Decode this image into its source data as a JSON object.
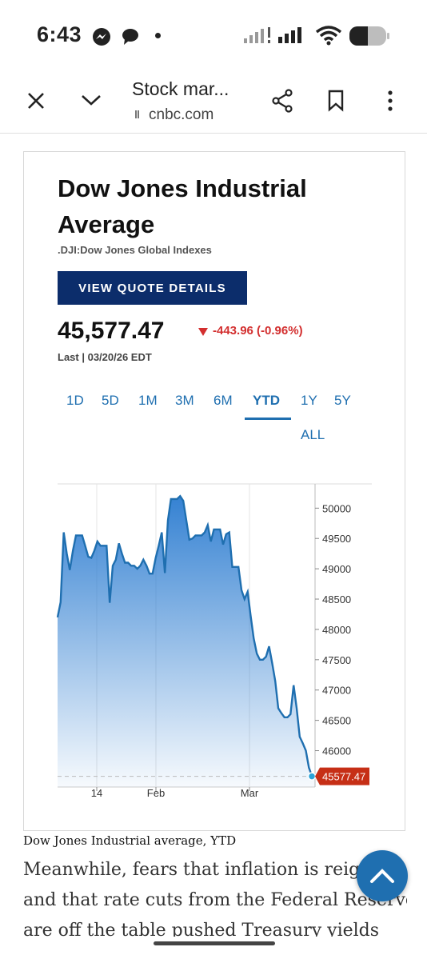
{
  "status_bar": {
    "time": "6:43"
  },
  "toolbar": {
    "title": "Stock mar...",
    "url": "cnbc.com"
  },
  "quote": {
    "title": "Dow Jones Industrial Average",
    "title_line1": "Dow Jones Industrial",
    "title_line2": "Average",
    "symbol_line": ".DJI:Dow Jones Global Indexes",
    "button_label": "VIEW QUOTE DETAILS",
    "price": "45,577.47",
    "change": "-443.96 (-0.96%)",
    "last": "Last | 03/20/26 EDT",
    "change_color": "#d32f2f",
    "button_color": "#0c2d6b"
  },
  "ranges": [
    "1D",
    "5D",
    "1M",
    "3M",
    "6M",
    "YTD",
    "1Y",
    "5Y",
    "ALL"
  ],
  "active_range": "YTD",
  "chart_data": {
    "type": "area",
    "x_ticks": [
      "14",
      "Feb",
      "Mar"
    ],
    "y_ticks": [
      50000,
      49500,
      49000,
      48500,
      48000,
      47500,
      47000,
      46500,
      46000
    ],
    "ylim": [
      45400,
      50400
    ],
    "current_label": "45577.47",
    "grid": true,
    "color": "#1f6fb0",
    "x": [
      0,
      1,
      2,
      3,
      4,
      5,
      6,
      7,
      8,
      9,
      10,
      11,
      12,
      13,
      14,
      15,
      16,
      17,
      18,
      19,
      20,
      21,
      22,
      23,
      24,
      25,
      26,
      27,
      28,
      29,
      30,
      31,
      32,
      33,
      34,
      35,
      36,
      37,
      38,
      39,
      40,
      41,
      42,
      43,
      44,
      45,
      46,
      47,
      48,
      49,
      50,
      51,
      52,
      53,
      54,
      55,
      56,
      57,
      58,
      59,
      60,
      61,
      62,
      63,
      64,
      65,
      66,
      67,
      68,
      69,
      70,
      71,
      72,
      73,
      74,
      75,
      76,
      77,
      78,
      79,
      80,
      81,
      82,
      83,
      84
    ],
    "values": [
      48200,
      48450,
      49600,
      49250,
      48980,
      49300,
      49550,
      49550,
      49550,
      49380,
      49200,
      49180,
      49300,
      49450,
      49380,
      49380,
      49380,
      48440,
      49050,
      49150,
      49420,
      49250,
      49100,
      49100,
      49050,
      49050,
      49000,
      49050,
      49150,
      49050,
      48920,
      48920,
      49180,
      49380,
      49600,
      48930,
      49800,
      50150,
      50150,
      50150,
      50200,
      50120,
      49800,
      49480,
      49500,
      49550,
      49550,
      49550,
      49600,
      49720,
      49450,
      49650,
      49650,
      49650,
      49400,
      49570,
      49600,
      49030,
      49030,
      49030,
      48650,
      48500,
      48620,
      48220,
      47850,
      47600,
      47500,
      47500,
      47550,
      47720,
      47450,
      47150,
      46700,
      46620,
      46550,
      46550,
      46600,
      47080,
      46700,
      46230,
      46120,
      46000,
      45720,
      45577,
      45577
    ]
  },
  "caption": "Dow Jones Industrial average, YTD",
  "body_lines": [
    "Meanwhile, fears that inflation is reign",
    "and that rate cuts from the Federal Reserve",
    "are off the table pushed Treasury yields"
  ]
}
